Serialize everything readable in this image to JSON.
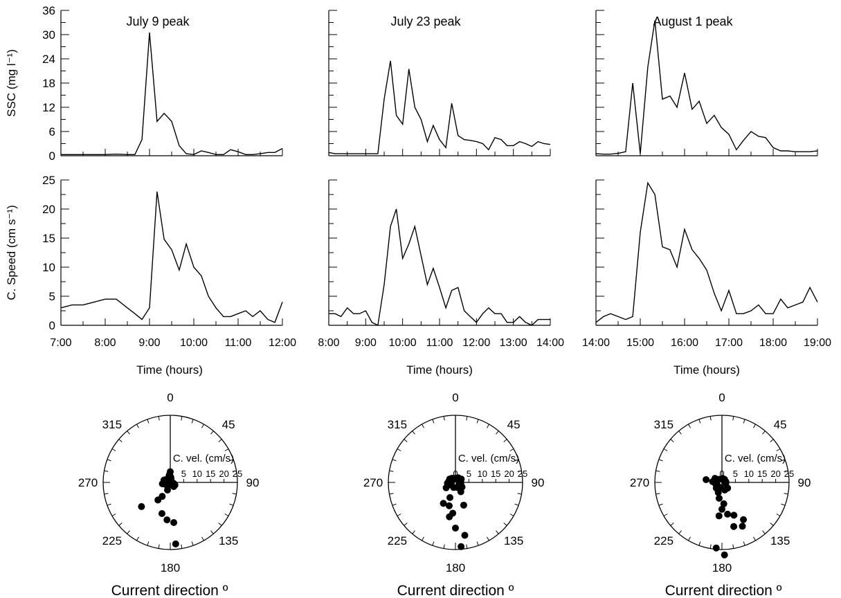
{
  "figure": {
    "ssc_ylabel": "SSC (mg l⁻¹)",
    "speed_ylabel": "C. Speed (cm s⁻¹)",
    "time_xlabel": "Time (hours)",
    "polar_axis_label": "C. vel. (cm/s)",
    "polar_title": "Current direction º"
  },
  "chart_data": [
    {
      "type": "line",
      "panel": "ssc-july9",
      "title": "July 9 peak",
      "ylabel": "SSC (mg l⁻¹)",
      "ylim": [
        0,
        36
      ],
      "yticks": [
        "0",
        "6",
        "12",
        "18",
        "24",
        "30",
        "36"
      ],
      "xlim": [
        7,
        12
      ],
      "xticks": [
        "7:00",
        "8:00",
        "9:00",
        "10:00",
        "11:00",
        "12:00"
      ],
      "x": [
        7,
        7.25,
        7.5,
        7.75,
        8,
        8.25,
        8.5,
        8.67,
        8.83,
        9,
        9.17,
        9.33,
        9.5,
        9.67,
        9.83,
        10,
        10.17,
        10.33,
        10.5,
        10.67,
        10.83,
        11,
        11.17,
        11.33,
        11.5,
        11.67,
        11.83,
        12
      ],
      "values": [
        0.3,
        0.3,
        0.3,
        0.3,
        0.3,
        0.4,
        0.3,
        0.3,
        4,
        30.5,
        8.5,
        10.5,
        8.5,
        2.5,
        0.5,
        0.3,
        1.2,
        0.8,
        0.3,
        0.3,
        1.5,
        1.0,
        0.3,
        0.3,
        0.5,
        0.8,
        0.8,
        1.8
      ]
    },
    {
      "type": "line",
      "panel": "ssc-july23",
      "title": "July 23  peak",
      "ylim": [
        0,
        36
      ],
      "xlim": [
        8,
        14
      ],
      "xticks": [
        "8:00",
        "9:00",
        "10:00",
        "11:00",
        "12:00",
        "13:00",
        "14:00"
      ],
      "x": [
        8,
        8.17,
        8.33,
        8.5,
        8.67,
        8.83,
        9,
        9.17,
        9.33,
        9.5,
        9.67,
        9.83,
        10,
        10.17,
        10.33,
        10.5,
        10.67,
        10.83,
        11,
        11.17,
        11.33,
        11.5,
        11.67,
        11.83,
        12,
        12.17,
        12.33,
        12.5,
        12.67,
        12.83,
        13,
        13.17,
        13.33,
        13.5,
        13.67,
        13.83,
        14
      ],
      "values": [
        0.8,
        0.5,
        0.5,
        0.5,
        0.5,
        0.5,
        0.5,
        0.5,
        0.5,
        14,
        23.5,
        10,
        7.8,
        21.5,
        12,
        9,
        3.5,
        7.5,
        4,
        2,
        13,
        5,
        4,
        3.8,
        3.5,
        3,
        1.5,
        4.5,
        4,
        2.5,
        2.5,
        3.5,
        3,
        2.3,
        3.5,
        3,
        2.8
      ]
    },
    {
      "type": "line",
      "panel": "ssc-aug1",
      "title": "August 1 peak",
      "ylim": [
        0,
        36
      ],
      "xlim": [
        14,
        19
      ],
      "xticks": [
        "14:00",
        "15:00",
        "16:00",
        "17:00",
        "18:00",
        "19:00"
      ],
      "x": [
        14,
        14.17,
        14.33,
        14.5,
        14.67,
        14.83,
        15,
        15.17,
        15.33,
        15.5,
        15.67,
        15.83,
        16,
        16.17,
        16.33,
        16.5,
        16.67,
        16.83,
        17,
        17.17,
        17.33,
        17.5,
        17.67,
        17.83,
        18,
        18.17,
        18.33,
        18.5,
        18.67,
        18.83,
        19
      ],
      "values": [
        0.5,
        0.4,
        0.4,
        0.6,
        1,
        18,
        0.5,
        22,
        33.5,
        14,
        14.8,
        12,
        20.5,
        11.5,
        13.5,
        8,
        10,
        7,
        5.3,
        1.5,
        3.8,
        6,
        4.8,
        4.5,
        2,
        1.2,
        1.2,
        1,
        1,
        1,
        1.2
      ]
    },
    {
      "type": "line",
      "panel": "speed-july9",
      "ylabel": "C. Speed (cm s⁻¹)",
      "ylim": [
        0,
        25
      ],
      "yticks": [
        "0",
        "5",
        "10",
        "15",
        "20",
        "25"
      ],
      "xlim": [
        7,
        12
      ],
      "xticks": [
        "7:00",
        "8:00",
        "9:00",
        "10:00",
        "11:00",
        "12:00"
      ],
      "x": [
        7,
        7.25,
        7.5,
        7.75,
        8,
        8.25,
        8.5,
        8.67,
        8.83,
        9,
        9.17,
        9.33,
        9.5,
        9.67,
        9.83,
        10,
        10.17,
        10.33,
        10.5,
        10.67,
        10.83,
        11,
        11.17,
        11.33,
        11.5,
        11.67,
        11.83,
        12
      ],
      "values": [
        3,
        3.5,
        3.5,
        4,
        4.5,
        4.5,
        3,
        2,
        1,
        3,
        23,
        14.8,
        13,
        9.5,
        14,
        10,
        8.5,
        5,
        3,
        1.5,
        1.5,
        2,
        2.5,
        1.5,
        2.5,
        1,
        0.5,
        4
      ]
    },
    {
      "type": "line",
      "panel": "speed-july23",
      "ylim": [
        0,
        25
      ],
      "xlim": [
        8,
        14
      ],
      "xticks": [
        "8:00",
        "9:00",
        "10:00",
        "11:00",
        "12:00",
        "13:00",
        "14:00"
      ],
      "x": [
        8,
        8.17,
        8.33,
        8.5,
        8.67,
        8.83,
        9,
        9.17,
        9.33,
        9.5,
        9.67,
        9.83,
        10,
        10.17,
        10.33,
        10.5,
        10.67,
        10.83,
        11,
        11.17,
        11.33,
        11.5,
        11.67,
        11.83,
        12,
        12.17,
        12.33,
        12.5,
        12.67,
        12.83,
        13,
        13.17,
        13.33,
        13.5,
        13.67,
        13.83,
        14
      ],
      "values": [
        2,
        2,
        1.5,
        3,
        2,
        2,
        2.5,
        0.5,
        0,
        7,
        17,
        20,
        11.5,
        14,
        17,
        12,
        7,
        9.8,
        6.5,
        3,
        6,
        6.5,
        2.5,
        1.5,
        0.5,
        2,
        3,
        2,
        2,
        0.5,
        0.5,
        1.5,
        0.5,
        0,
        1,
        1,
        1
      ]
    },
    {
      "type": "line",
      "panel": "speed-aug1",
      "ylim": [
        0,
        25
      ],
      "xlim": [
        14,
        19
      ],
      "xticks": [
        "14:00",
        "15:00",
        "16:00",
        "17:00",
        "18:00",
        "19:00"
      ],
      "x": [
        14,
        14.17,
        14.33,
        14.5,
        14.67,
        14.83,
        15,
        15.17,
        15.33,
        15.5,
        15.67,
        15.83,
        16,
        16.17,
        16.33,
        16.5,
        16.67,
        16.83,
        17,
        17.17,
        17.33,
        17.5,
        17.67,
        17.83,
        18,
        18.17,
        18.33,
        18.5,
        18.67,
        18.83,
        19
      ],
      "values": [
        0.5,
        1.5,
        2,
        1.5,
        1,
        1.5,
        16,
        24.5,
        22.5,
        13.5,
        13,
        10,
        16.5,
        13,
        11.5,
        9.5,
        5.5,
        2.5,
        6,
        2,
        2,
        2.5,
        3.5,
        2,
        2,
        4.5,
        3,
        3.5,
        4,
        6.5,
        4
      ]
    },
    {
      "type": "scatter",
      "panel": "polar-july9",
      "polar": true,
      "radial_max": 25,
      "direction_labels": [
        "0",
        "45",
        "90",
        "135",
        "180",
        "225",
        "270",
        "315"
      ],
      "radial_ticks": [
        "0",
        "5",
        "10",
        "15",
        "20",
        "25"
      ],
      "points": [
        {
          "dir": 0,
          "speed": 4
        },
        {
          "dir": 355,
          "speed": 3
        },
        {
          "dir": 350,
          "speed": 2.5
        },
        {
          "dir": 5,
          "speed": 2
        },
        {
          "dir": 345,
          "speed": 2
        },
        {
          "dir": 10,
          "speed": 1.5
        },
        {
          "dir": 300,
          "speed": 2
        },
        {
          "dir": 290,
          "speed": 2.5
        },
        {
          "dir": 270,
          "speed": 1
        },
        {
          "dir": 250,
          "speed": 2
        },
        {
          "dir": 240,
          "speed": 1.5
        },
        {
          "dir": 200,
          "speed": 3
        },
        {
          "dir": 150,
          "speed": 1
        },
        {
          "dir": 120,
          "speed": 2
        },
        {
          "dir": 100,
          "speed": 1
        },
        {
          "dir": 110,
          "speed": 1.5
        },
        {
          "dir": 210,
          "speed": 6
        },
        {
          "dir": 215,
          "speed": 8
        },
        {
          "dir": 230,
          "speed": 14
        },
        {
          "dir": 195,
          "speed": 12
        },
        {
          "dir": 185,
          "speed": 14
        },
        {
          "dir": 175,
          "speed": 15
        },
        {
          "dir": 175,
          "speed": 23
        },
        {
          "dir": 140,
          "speed": 2
        },
        {
          "dir": 260,
          "speed": 3
        }
      ]
    },
    {
      "type": "scatter",
      "panel": "polar-july23",
      "polar": true,
      "radial_max": 25,
      "direction_labels": [
        "0",
        "45",
        "90",
        "135",
        "180",
        "225",
        "270",
        "315"
      ],
      "radial_ticks": [
        "0",
        "5",
        "10",
        "15",
        "20",
        "25"
      ],
      "points": [
        {
          "dir": 10,
          "speed": 1.5
        },
        {
          "dir": 30,
          "speed": 2
        },
        {
          "dir": 60,
          "speed": 2.5
        },
        {
          "dir": 80,
          "speed": 2
        },
        {
          "dir": 350,
          "speed": 1.5
        },
        {
          "dir": 300,
          "speed": 2.5
        },
        {
          "dir": 280,
          "speed": 2.5
        },
        {
          "dir": 265,
          "speed": 3
        },
        {
          "dir": 245,
          "speed": 2
        },
        {
          "dir": 200,
          "speed": 2
        },
        {
          "dir": 160,
          "speed": 2
        },
        {
          "dir": 125,
          "speed": 3
        },
        {
          "dir": 100,
          "speed": 2
        },
        {
          "dir": 240,
          "speed": 4
        },
        {
          "dir": 200,
          "speed": 6
        },
        {
          "dir": 210,
          "speed": 9
        },
        {
          "dir": 195,
          "speed": 9
        },
        {
          "dir": 160,
          "speed": 9
        },
        {
          "dir": 190,
          "speed": 13
        },
        {
          "dir": 180,
          "speed": 17
        },
        {
          "dir": 170,
          "speed": 20
        },
        {
          "dir": 175,
          "speed": 24
        },
        {
          "dir": 185,
          "speed": 11.5
        },
        {
          "dir": 150,
          "speed": 4
        },
        {
          "dir": 120,
          "speed": 1.5
        },
        {
          "dir": 270,
          "speed": 1.5
        },
        {
          "dir": 320,
          "speed": 2
        }
      ]
    },
    {
      "type": "scatter",
      "panel": "polar-aug1",
      "polar": true,
      "radial_max": 25,
      "direction_labels": [
        "0",
        "45",
        "90",
        "135",
        "180",
        "225",
        "270",
        "315"
      ],
      "radial_ticks": [
        "0",
        "5",
        "10",
        "15",
        "20",
        "25"
      ],
      "points": [
        {
          "dir": 280,
          "speed": 6
        },
        {
          "dir": 275,
          "speed": 3.5
        },
        {
          "dir": 285,
          "speed": 2
        },
        {
          "dir": 320,
          "speed": 1.5
        },
        {
          "dir": 10,
          "speed": 1.5
        },
        {
          "dir": 40,
          "speed": 1.5
        },
        {
          "dir": 80,
          "speed": 1.5
        },
        {
          "dir": 110,
          "speed": 1.5
        },
        {
          "dir": 200,
          "speed": 2
        },
        {
          "dir": 240,
          "speed": 2
        },
        {
          "dir": 260,
          "speed": 2.5
        },
        {
          "dir": 225,
          "speed": 3
        },
        {
          "dir": 160,
          "speed": 3
        },
        {
          "dir": 200,
          "speed": 4
        },
        {
          "dir": 190,
          "speed": 6
        },
        {
          "dir": 175,
          "speed": 8
        },
        {
          "dir": 180,
          "speed": 10
        },
        {
          "dir": 170,
          "speed": 12
        },
        {
          "dir": 185,
          "speed": 12.5
        },
        {
          "dir": 160,
          "speed": 13
        },
        {
          "dir": 150,
          "speed": 16
        },
        {
          "dir": 155,
          "speed": 18
        },
        {
          "dir": 165,
          "speed": 17
        },
        {
          "dir": 185,
          "speed": 24.5
        },
        {
          "dir": 178,
          "speed": 27
        },
        {
          "dir": 135,
          "speed": 3
        },
        {
          "dir": 90,
          "speed": 1
        },
        {
          "dir": 300,
          "speed": 3
        }
      ]
    }
  ]
}
